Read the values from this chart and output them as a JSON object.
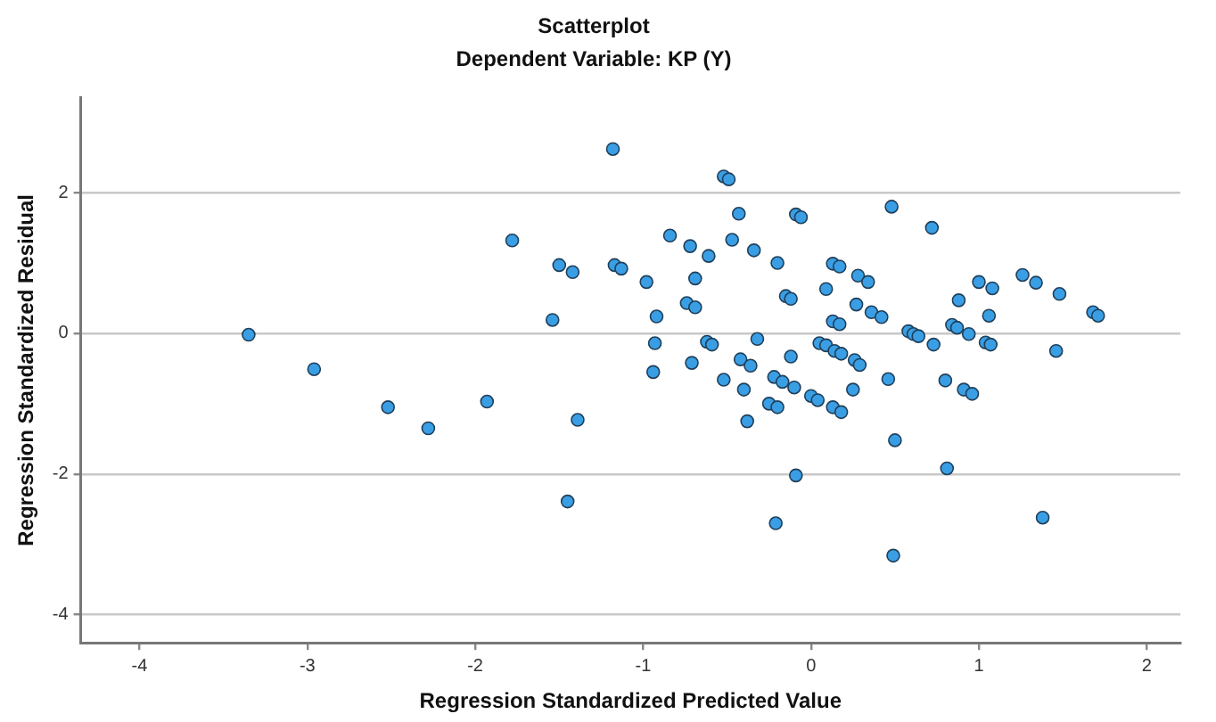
{
  "chart_data": {
    "type": "scatter",
    "title": "Scatterplot",
    "subtitle": "Dependent Variable: KP (Y)",
    "xlabel": "Regression Standardized Predicted Value",
    "ylabel": "Regression Standardized Residual",
    "xlim": [
      -4.35,
      2.2
    ],
    "ylim": [
      -4.4,
      3.35
    ],
    "xticks": [
      -4,
      -3,
      -2,
      -1,
      0,
      1,
      2
    ],
    "yticks": [
      -4,
      -2,
      0,
      2
    ],
    "grid": "y",
    "marker": "circle",
    "legend": false,
    "series": [
      {
        "color": "#3a9ee4",
        "x": [
          -3.35,
          -2.96,
          -2.52,
          -2.28,
          -1.93,
          -1.78,
          -1.54,
          -1.5,
          -1.42,
          -1.39,
          -1.45,
          -1.18,
          -1.17,
          -1.13,
          -0.52,
          -0.49,
          -0.43,
          -0.09,
          -0.06,
          0.48,
          0.72,
          -0.84,
          -0.72,
          -0.47,
          -0.61,
          -0.34,
          -0.2,
          -0.98,
          -0.69,
          0.13,
          0.17,
          0.28,
          0.34,
          0.09,
          -0.15,
          -0.12,
          -0.74,
          -0.69,
          0.27,
          0.36,
          0.42,
          -0.92,
          0.13,
          0.17,
          1.0,
          1.08,
          1.26,
          1.34,
          1.48,
          0.88,
          1.06,
          1.68,
          1.71,
          0.84,
          0.87,
          0.58,
          0.61,
          0.64,
          0.73,
          0.94,
          1.04,
          1.07,
          1.46,
          -0.93,
          -0.62,
          -0.59,
          -0.32,
          0.05,
          0.09,
          0.14,
          0.18,
          0.26,
          0.29,
          -0.42,
          -0.36,
          -0.12,
          -0.71,
          -0.94,
          -0.52,
          -0.22,
          -0.17,
          -0.4,
          -0.1,
          0.46,
          0.8,
          0.25,
          0.91,
          0.96,
          0.0,
          0.04,
          -0.25,
          -0.2,
          0.13,
          0.18,
          -0.38,
          0.5,
          0.81,
          -0.09,
          -0.21,
          1.38,
          0.49
        ],
        "values": [
          -0.02,
          -0.51,
          -1.05,
          -1.35,
          -0.97,
          1.32,
          0.19,
          0.97,
          0.87,
          -1.23,
          -2.39,
          2.62,
          0.97,
          0.92,
          2.23,
          2.19,
          1.7,
          1.69,
          1.65,
          1.8,
          1.5,
          1.39,
          1.24,
          1.33,
          1.1,
          1.18,
          1.0,
          0.73,
          0.78,
          0.99,
          0.95,
          0.82,
          0.73,
          0.63,
          0.53,
          0.49,
          0.43,
          0.37,
          0.41,
          0.3,
          0.23,
          0.24,
          0.17,
          0.13,
          0.73,
          0.64,
          0.83,
          0.72,
          0.56,
          0.47,
          0.25,
          0.3,
          0.25,
          0.12,
          0.08,
          0.03,
          -0.01,
          -0.04,
          -0.16,
          -0.01,
          -0.13,
          -0.16,
          -0.25,
          -0.14,
          -0.12,
          -0.16,
          -0.08,
          -0.14,
          -0.17,
          -0.25,
          -0.29,
          -0.38,
          -0.45,
          -0.37,
          -0.46,
          -0.33,
          -0.42,
          -0.55,
          -0.66,
          -0.62,
          -0.69,
          -0.8,
          -0.77,
          -0.65,
          -0.67,
          -0.8,
          -0.8,
          -0.86,
          -0.89,
          -0.95,
          -1.0,
          -1.05,
          -1.05,
          -1.12,
          -1.25,
          -1.52,
          -1.92,
          -2.02,
          -2.7,
          -2.62,
          -3.16
        ]
      }
    ]
  }
}
